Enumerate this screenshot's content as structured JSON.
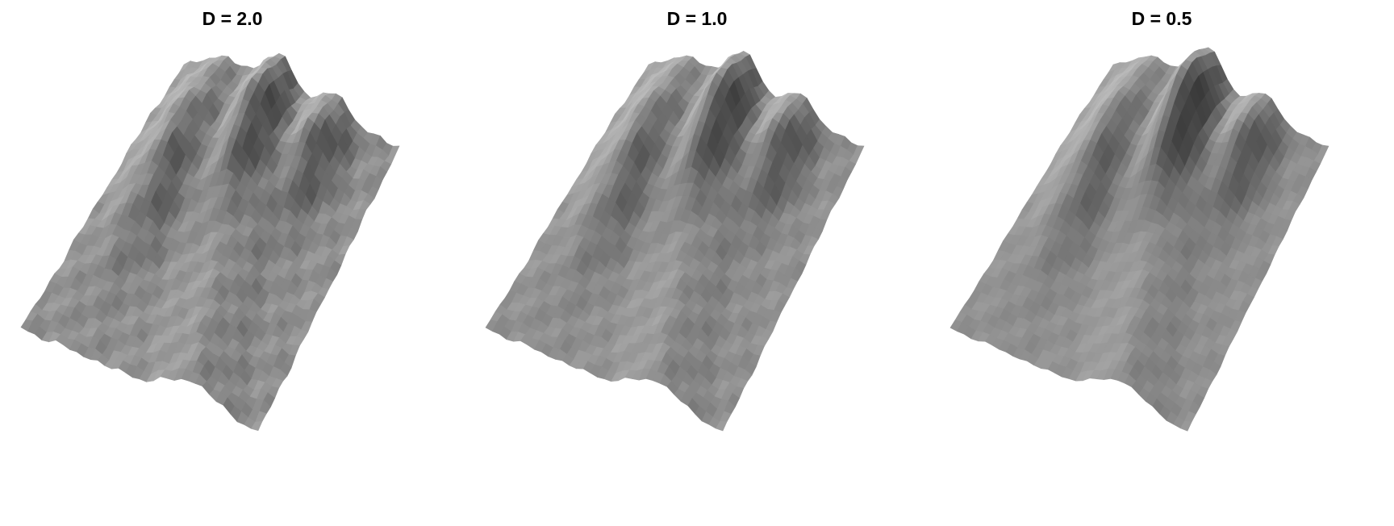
{
  "chart_data": {
    "type": "surface",
    "panels": [
      {
        "title": "D = 2.0"
      },
      {
        "title": "D = 1.0"
      },
      {
        "title": "D = 0.5"
      }
    ],
    "colormap": "grayscale",
    "axes": "none"
  }
}
